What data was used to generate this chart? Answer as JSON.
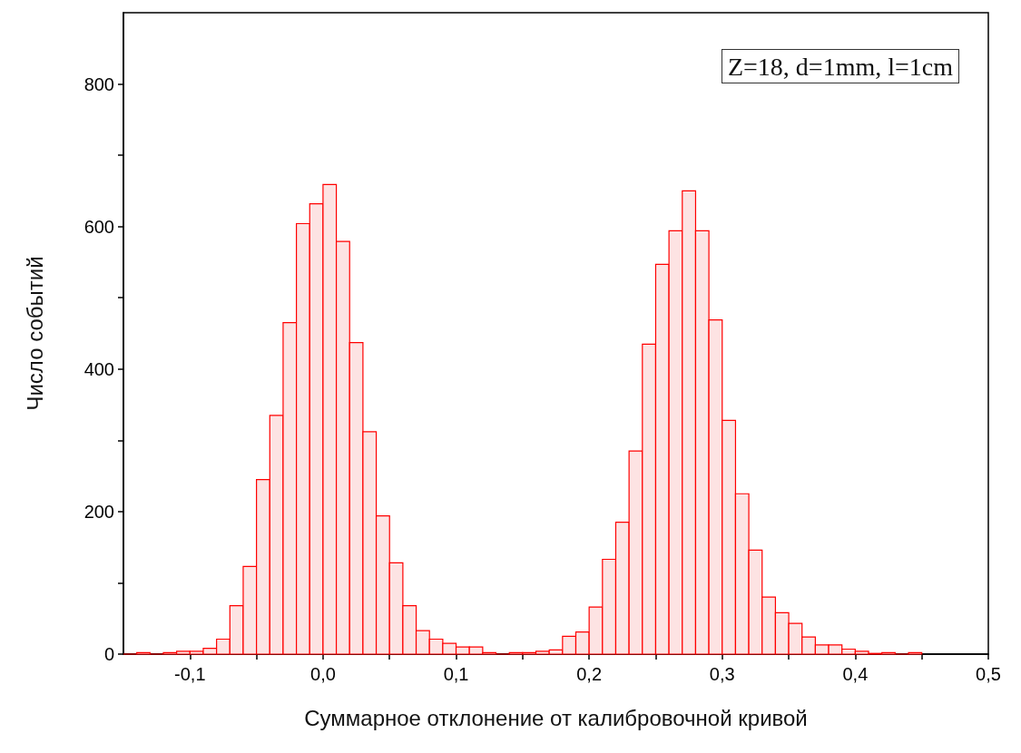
{
  "chart_data": {
    "type": "histogram",
    "xlabel": "Суммарное отклонение от калибровочной кривой",
    "ylabel": "Число событий",
    "annotations": [
      "Z=18, d=1mm, l=1cm"
    ],
    "color": "#ff0000",
    "bins": [
      -0.15,
      -0.14,
      -0.13,
      -0.12,
      -0.11,
      -0.1,
      -0.09,
      -0.08,
      -0.07,
      -0.06,
      -0.05,
      -0.04,
      -0.03,
      -0.02,
      -0.01,
      0,
      0.01,
      0.02,
      0.03,
      0.04,
      0.05,
      0.06,
      0.07,
      0.08,
      0.09,
      0.1,
      0.11,
      0.12,
      0.13,
      0.14,
      0.15,
      0.16,
      0.17,
      0.18,
      0.19,
      0.2,
      0.21,
      0.22,
      0.23,
      0.24,
      0.25,
      0.26,
      0.27,
      0.28,
      0.29,
      0.3,
      0.31,
      0.32,
      0.33,
      0.34,
      0.35,
      0.36,
      0.37,
      0.38,
      0.39,
      0.4,
      0.41,
      0.42,
      0.43,
      0.44,
      0.45
    ],
    "values": [
      0,
      2,
      0,
      2,
      4,
      4,
      8,
      21,
      68,
      123,
      245,
      335,
      465,
      604,
      632,
      659,
      579,
      437,
      312,
      194,
      128,
      68,
      33,
      21,
      15,
      10,
      10,
      2,
      0,
      2,
      2,
      4,
      6,
      25,
      31,
      66,
      133,
      185,
      285,
      435,
      547,
      594,
      650,
      594,
      469,
      328,
      225,
      146,
      80,
      58,
      43,
      24,
      13,
      13,
      7,
      4,
      1,
      2,
      0,
      2
    ],
    "xlim": [
      -0.15,
      0.5
    ],
    "xticks": [
      {
        "value": -0.1,
        "label": "-0,1"
      },
      {
        "value": -0.05,
        "label": null
      },
      {
        "value": 0,
        "label": "0,0"
      },
      {
        "value": 0.05,
        "label": null
      },
      {
        "value": 0.1,
        "label": "0,1"
      },
      {
        "value": 0.15,
        "label": null
      },
      {
        "value": 0.2,
        "label": "0,2"
      },
      {
        "value": 0.25,
        "label": null
      },
      {
        "value": 0.3,
        "label": "0,3"
      },
      {
        "value": 0.35,
        "label": null
      },
      {
        "value": 0.4,
        "label": "0,4"
      },
      {
        "value": 0.45,
        "label": null
      },
      {
        "value": 0.5,
        "label": "0,5"
      }
    ],
    "ylim": [
      0,
      900
    ],
    "yticks": [
      0,
      {
        "value": 100,
        "label": null
      },
      200,
      {
        "value": 300,
        "label": null
      },
      400,
      {
        "value": 500,
        "label": null
      },
      600,
      {
        "value": 700,
        "label": null
      },
      800
    ]
  }
}
